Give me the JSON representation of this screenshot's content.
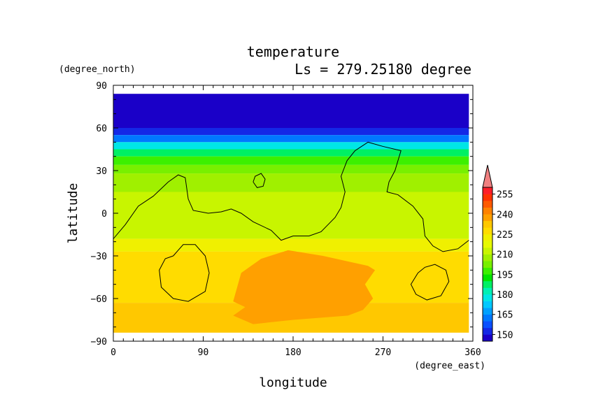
{
  "chart_data": {
    "type": "heatmap",
    "title": "temperature",
    "subtitle": "Ls = 279.25180 degree",
    "xlabel": "longitude",
    "ylabel": "latitude",
    "x_units": "(degree_east)",
    "y_units": "(degree_north)",
    "xlim": [
      0,
      360
    ],
    "ylim": [
      -90,
      90
    ],
    "data_extent": {
      "lon": [
        0,
        356
      ],
      "lat": [
        -84,
        84
      ]
    },
    "xticks": [
      "0",
      "90",
      "180",
      "270",
      "360"
    ],
    "yticks": [
      "90",
      "60",
      "30",
      "0",
      "−30",
      "−60",
      "−90"
    ],
    "xtick_values": [
      0,
      90,
      180,
      270,
      360
    ],
    "ytick_values": [
      90,
      60,
      30,
      0,
      -30,
      -60,
      -90
    ],
    "colorbar": {
      "labels": [
        "255",
        "240",
        "225",
        "210",
        "195",
        "180",
        "165",
        "150"
      ],
      "label_values": [
        255,
        240,
        225,
        210,
        195,
        180,
        165,
        150
      ],
      "levels": [
        145,
        150,
        155,
        160,
        165,
        170,
        175,
        180,
        185,
        190,
        195,
        200,
        205,
        210,
        215,
        220,
        225,
        230,
        235,
        240,
        245,
        250,
        255,
        260
      ],
      "colors": [
        "#1a00c8",
        "#1428e6",
        "#0a50ff",
        "#0078ff",
        "#00a0ff",
        "#00c8ff",
        "#00e6e6",
        "#00f0b4",
        "#00f064",
        "#00e600",
        "#3cf000",
        "#78f000",
        "#a0f000",
        "#c8f500",
        "#e6fa00",
        "#f0f000",
        "#ffdc00",
        "#ffc800",
        "#ffa000",
        "#ff8200",
        "#ff5a00",
        "#ff3200",
        "#ff1e28"
      ],
      "extend_max_color": "#f08080"
    },
    "latitude_bands": [
      {
        "lat": [
          60,
          84
        ],
        "temp": 147
      },
      {
        "lat": [
          55,
          60
        ],
        "temp": 153
      },
      {
        "lat": [
          50,
          55
        ],
        "temp": 163
      },
      {
        "lat": [
          45,
          50
        ],
        "temp": 176
      },
      {
        "lat": [
          40,
          45
        ],
        "temp": 188
      },
      {
        "lat": [
          34,
          40
        ],
        "temp": 198
      },
      {
        "lat": [
          28,
          34
        ],
        "temp": 203
      },
      {
        "lat": [
          15,
          28
        ],
        "temp": 208
      },
      {
        "lat": [
          -18,
          15
        ],
        "temp": 213
      },
      {
        "lat": [
          -27,
          -18
        ],
        "temp": 222
      },
      {
        "lat": [
          -63,
          -27
        ],
        "temp": 226
      },
      {
        "lat": [
          -84,
          -63
        ],
        "temp": 230
      }
    ],
    "warm_region": {
      "temp": 237,
      "outline_lonlat": [
        [
          120,
          -62
        ],
        [
          128,
          -42
        ],
        [
          148,
          -32
        ],
        [
          175,
          -26
        ],
        [
          210,
          -30
        ],
        [
          255,
          -37
        ],
        [
          262,
          -40
        ],
        [
          252,
          -50
        ],
        [
          260,
          -60
        ],
        [
          250,
          -68
        ],
        [
          235,
          -72
        ],
        [
          180,
          -75
        ],
        [
          140,
          -78
        ],
        [
          120,
          -72
        ],
        [
          132,
          -66
        ]
      ]
    },
    "topography_contours": [
      [
        [
          0,
          -18
        ],
        [
          12,
          -8
        ],
        [
          25,
          5
        ],
        [
          40,
          12
        ],
        [
          55,
          22
        ],
        [
          65,
          27
        ],
        [
          72,
          25
        ],
        [
          75,
          10
        ],
        [
          80,
          2
        ],
        [
          95,
          0
        ],
        [
          108,
          1
        ],
        [
          118,
          3
        ],
        [
          128,
          0
        ],
        [
          140,
          -6
        ],
        [
          158,
          -12
        ],
        [
          168,
          -19
        ],
        [
          180,
          -16
        ],
        [
          196,
          -16
        ],
        [
          208,
          -13
        ],
        [
          222,
          -3
        ],
        [
          228,
          4
        ],
        [
          232,
          15
        ],
        [
          228,
          26
        ],
        [
          234,
          37
        ],
        [
          242,
          44
        ],
        [
          255,
          50
        ],
        [
          270,
          47
        ],
        [
          288,
          44
        ],
        [
          282,
          30
        ],
        [
          276,
          22
        ],
        [
          274,
          15
        ],
        [
          285,
          13
        ],
        [
          300,
          5
        ],
        [
          310,
          -4
        ],
        [
          312,
          -16
        ],
        [
          320,
          -23
        ],
        [
          330,
          -27
        ],
        [
          345,
          -25
        ],
        [
          356,
          -19
        ]
      ],
      [
        [
          140,
          22
        ],
        [
          142,
          26
        ],
        [
          148,
          28
        ],
        [
          152,
          24
        ],
        [
          150,
          19
        ],
        [
          144,
          18
        ],
        [
          140,
          22
        ]
      ],
      [
        [
          60,
          -30
        ],
        [
          70,
          -22
        ],
        [
          82,
          -22
        ],
        [
          92,
          -30
        ],
        [
          96,
          -42
        ],
        [
          92,
          -55
        ],
        [
          75,
          -62
        ],
        [
          60,
          -60
        ],
        [
          48,
          -52
        ],
        [
          46,
          -40
        ],
        [
          52,
          -32
        ],
        [
          60,
          -30
        ]
      ],
      [
        [
          305,
          -42
        ],
        [
          312,
          -38
        ],
        [
          322,
          -36
        ],
        [
          333,
          -40
        ],
        [
          336,
          -48
        ],
        [
          328,
          -58
        ],
        [
          314,
          -61
        ],
        [
          303,
          -57
        ],
        [
          298,
          -50
        ],
        [
          305,
          -42
        ]
      ]
    ]
  }
}
